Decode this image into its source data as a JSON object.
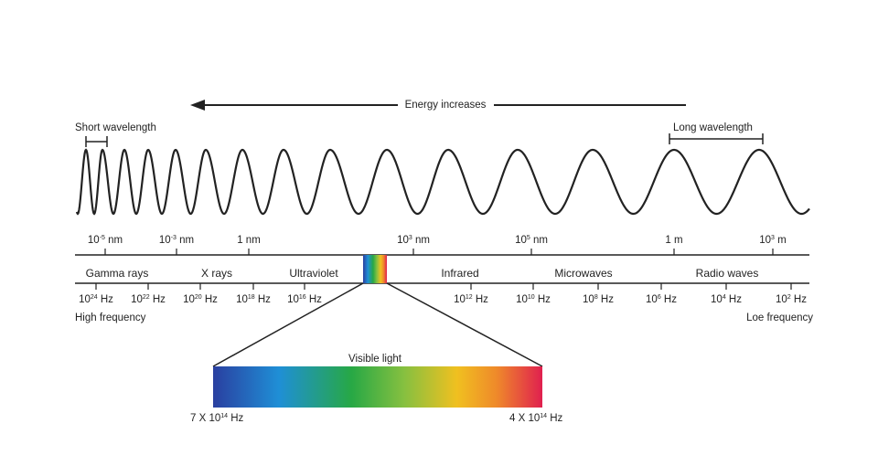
{
  "energy_label": "Energy increases",
  "short_wavelength": "Short wavelength",
  "long_wavelength": "Long wavelength",
  "wavelength_ticks": [
    {
      "base": "10",
      "exp": "-5",
      "unit": "nm"
    },
    {
      "base": "10",
      "exp": "-3",
      "unit": "nm"
    },
    {
      "base": "1",
      "exp": "",
      "unit": "nm"
    },
    {
      "base": "10",
      "exp": "3",
      "unit": "nm"
    },
    {
      "base": "10",
      "exp": "5",
      "unit": "nm"
    },
    {
      "base": "1",
      "exp": "",
      "unit": "m"
    },
    {
      "base": "10",
      "exp": "3",
      "unit": "m"
    }
  ],
  "bands": [
    "Gamma rays",
    "X rays",
    "Ultraviolet",
    "Infrared",
    "Microwaves",
    "Radio waves"
  ],
  "frequency_ticks": [
    {
      "base": "10",
      "exp": "24",
      "unit": "Hz"
    },
    {
      "base": "10",
      "exp": "22",
      "unit": "Hz"
    },
    {
      "base": "10",
      "exp": "20",
      "unit": "Hz"
    },
    {
      "base": "10",
      "exp": "18",
      "unit": "Hz"
    },
    {
      "base": "10",
      "exp": "16",
      "unit": "Hz"
    },
    {
      "base": "10",
      "exp": "12",
      "unit": "Hz"
    },
    {
      "base": "10",
      "exp": "10",
      "unit": "Hz"
    },
    {
      "base": "10",
      "exp": "8",
      "unit": "Hz"
    },
    {
      "base": "10",
      "exp": "6",
      "unit": "Hz"
    },
    {
      "base": "10",
      "exp": "4",
      "unit": "Hz"
    },
    {
      "base": "10",
      "exp": "2",
      "unit": "Hz"
    }
  ],
  "high_frequency": "High frequency",
  "low_frequency": "Loe frequency",
  "visible_light": "Visible light",
  "visible_left": {
    "prefix": "7 X 10",
    "exp": "14",
    "unit": "Hz"
  },
  "visible_right": {
    "prefix": "4 X 10",
    "exp": "14",
    "unit": "Hz"
  },
  "colors": {
    "line": "#222222",
    "violet": "#2a3fa0",
    "blue": "#1f8fd6",
    "green": "#27a845",
    "yellow": "#f0c020",
    "orange": "#ef8a2a",
    "red": "#e0204f"
  }
}
